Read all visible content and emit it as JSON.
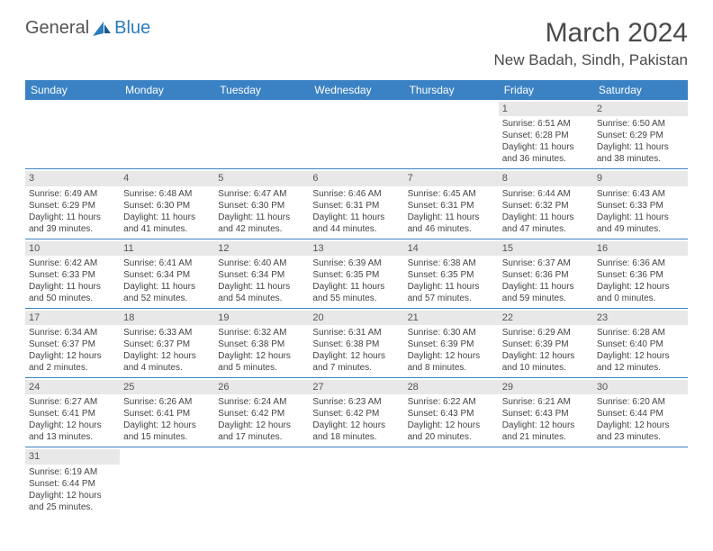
{
  "logo": {
    "text1": "General",
    "text2": "Blue"
  },
  "title": "March 2024",
  "location": "New Badah, Sindh, Pakistan",
  "colors": {
    "header_bg": "#3b82c4",
    "header_text": "#ffffff",
    "daynum_bg": "#e8e8e8",
    "border": "#3b82c4",
    "logo_gray": "#545454",
    "logo_blue": "#2b7bbf"
  },
  "day_names": [
    "Sunday",
    "Monday",
    "Tuesday",
    "Wednesday",
    "Thursday",
    "Friday",
    "Saturday"
  ],
  "weeks": [
    [
      {
        "n": "",
        "sr": "",
        "ss": "",
        "dl": ""
      },
      {
        "n": "",
        "sr": "",
        "ss": "",
        "dl": ""
      },
      {
        "n": "",
        "sr": "",
        "ss": "",
        "dl": ""
      },
      {
        "n": "",
        "sr": "",
        "ss": "",
        "dl": ""
      },
      {
        "n": "",
        "sr": "",
        "ss": "",
        "dl": ""
      },
      {
        "n": "1",
        "sr": "Sunrise: 6:51 AM",
        "ss": "Sunset: 6:28 PM",
        "dl": "Daylight: 11 hours and 36 minutes."
      },
      {
        "n": "2",
        "sr": "Sunrise: 6:50 AM",
        "ss": "Sunset: 6:29 PM",
        "dl": "Daylight: 11 hours and 38 minutes."
      }
    ],
    [
      {
        "n": "3",
        "sr": "Sunrise: 6:49 AM",
        "ss": "Sunset: 6:29 PM",
        "dl": "Daylight: 11 hours and 39 minutes."
      },
      {
        "n": "4",
        "sr": "Sunrise: 6:48 AM",
        "ss": "Sunset: 6:30 PM",
        "dl": "Daylight: 11 hours and 41 minutes."
      },
      {
        "n": "5",
        "sr": "Sunrise: 6:47 AM",
        "ss": "Sunset: 6:30 PM",
        "dl": "Daylight: 11 hours and 42 minutes."
      },
      {
        "n": "6",
        "sr": "Sunrise: 6:46 AM",
        "ss": "Sunset: 6:31 PM",
        "dl": "Daylight: 11 hours and 44 minutes."
      },
      {
        "n": "7",
        "sr": "Sunrise: 6:45 AM",
        "ss": "Sunset: 6:31 PM",
        "dl": "Daylight: 11 hours and 46 minutes."
      },
      {
        "n": "8",
        "sr": "Sunrise: 6:44 AM",
        "ss": "Sunset: 6:32 PM",
        "dl": "Daylight: 11 hours and 47 minutes."
      },
      {
        "n": "9",
        "sr": "Sunrise: 6:43 AM",
        "ss": "Sunset: 6:33 PM",
        "dl": "Daylight: 11 hours and 49 minutes."
      }
    ],
    [
      {
        "n": "10",
        "sr": "Sunrise: 6:42 AM",
        "ss": "Sunset: 6:33 PM",
        "dl": "Daylight: 11 hours and 50 minutes."
      },
      {
        "n": "11",
        "sr": "Sunrise: 6:41 AM",
        "ss": "Sunset: 6:34 PM",
        "dl": "Daylight: 11 hours and 52 minutes."
      },
      {
        "n": "12",
        "sr": "Sunrise: 6:40 AM",
        "ss": "Sunset: 6:34 PM",
        "dl": "Daylight: 11 hours and 54 minutes."
      },
      {
        "n": "13",
        "sr": "Sunrise: 6:39 AM",
        "ss": "Sunset: 6:35 PM",
        "dl": "Daylight: 11 hours and 55 minutes."
      },
      {
        "n": "14",
        "sr": "Sunrise: 6:38 AM",
        "ss": "Sunset: 6:35 PM",
        "dl": "Daylight: 11 hours and 57 minutes."
      },
      {
        "n": "15",
        "sr": "Sunrise: 6:37 AM",
        "ss": "Sunset: 6:36 PM",
        "dl": "Daylight: 11 hours and 59 minutes."
      },
      {
        "n": "16",
        "sr": "Sunrise: 6:36 AM",
        "ss": "Sunset: 6:36 PM",
        "dl": "Daylight: 12 hours and 0 minutes."
      }
    ],
    [
      {
        "n": "17",
        "sr": "Sunrise: 6:34 AM",
        "ss": "Sunset: 6:37 PM",
        "dl": "Daylight: 12 hours and 2 minutes."
      },
      {
        "n": "18",
        "sr": "Sunrise: 6:33 AM",
        "ss": "Sunset: 6:37 PM",
        "dl": "Daylight: 12 hours and 4 minutes."
      },
      {
        "n": "19",
        "sr": "Sunrise: 6:32 AM",
        "ss": "Sunset: 6:38 PM",
        "dl": "Daylight: 12 hours and 5 minutes."
      },
      {
        "n": "20",
        "sr": "Sunrise: 6:31 AM",
        "ss": "Sunset: 6:38 PM",
        "dl": "Daylight: 12 hours and 7 minutes."
      },
      {
        "n": "21",
        "sr": "Sunrise: 6:30 AM",
        "ss": "Sunset: 6:39 PM",
        "dl": "Daylight: 12 hours and 8 minutes."
      },
      {
        "n": "22",
        "sr": "Sunrise: 6:29 AM",
        "ss": "Sunset: 6:39 PM",
        "dl": "Daylight: 12 hours and 10 minutes."
      },
      {
        "n": "23",
        "sr": "Sunrise: 6:28 AM",
        "ss": "Sunset: 6:40 PM",
        "dl": "Daylight: 12 hours and 12 minutes."
      }
    ],
    [
      {
        "n": "24",
        "sr": "Sunrise: 6:27 AM",
        "ss": "Sunset: 6:41 PM",
        "dl": "Daylight: 12 hours and 13 minutes."
      },
      {
        "n": "25",
        "sr": "Sunrise: 6:26 AM",
        "ss": "Sunset: 6:41 PM",
        "dl": "Daylight: 12 hours and 15 minutes."
      },
      {
        "n": "26",
        "sr": "Sunrise: 6:24 AM",
        "ss": "Sunset: 6:42 PM",
        "dl": "Daylight: 12 hours and 17 minutes."
      },
      {
        "n": "27",
        "sr": "Sunrise: 6:23 AM",
        "ss": "Sunset: 6:42 PM",
        "dl": "Daylight: 12 hours and 18 minutes."
      },
      {
        "n": "28",
        "sr": "Sunrise: 6:22 AM",
        "ss": "Sunset: 6:43 PM",
        "dl": "Daylight: 12 hours and 20 minutes."
      },
      {
        "n": "29",
        "sr": "Sunrise: 6:21 AM",
        "ss": "Sunset: 6:43 PM",
        "dl": "Daylight: 12 hours and 21 minutes."
      },
      {
        "n": "30",
        "sr": "Sunrise: 6:20 AM",
        "ss": "Sunset: 6:44 PM",
        "dl": "Daylight: 12 hours and 23 minutes."
      }
    ],
    [
      {
        "n": "31",
        "sr": "Sunrise: 6:19 AM",
        "ss": "Sunset: 6:44 PM",
        "dl": "Daylight: 12 hours and 25 minutes."
      },
      {
        "n": "",
        "sr": "",
        "ss": "",
        "dl": ""
      },
      {
        "n": "",
        "sr": "",
        "ss": "",
        "dl": ""
      },
      {
        "n": "",
        "sr": "",
        "ss": "",
        "dl": ""
      },
      {
        "n": "",
        "sr": "",
        "ss": "",
        "dl": ""
      },
      {
        "n": "",
        "sr": "",
        "ss": "",
        "dl": ""
      },
      {
        "n": "",
        "sr": "",
        "ss": "",
        "dl": ""
      }
    ]
  ]
}
